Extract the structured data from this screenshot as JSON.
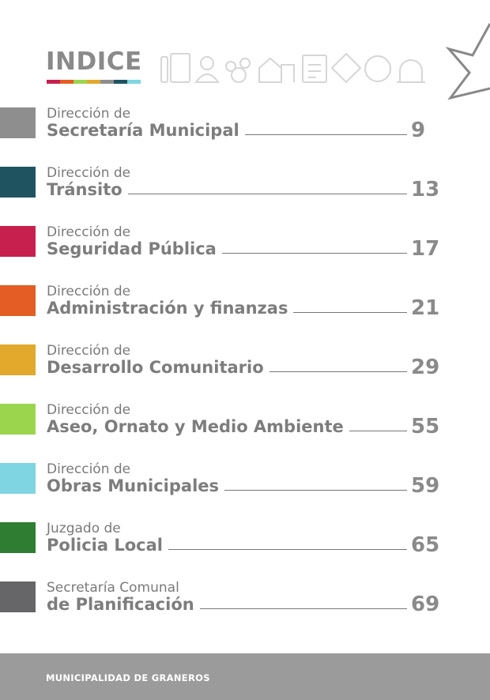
{
  "title": "INDICE",
  "entries": [
    {
      "prefix": "Dirección de",
      "name": "Secretaría Municipal",
      "page": 9,
      "color": "#8e8e8e"
    },
    {
      "prefix": "Dirección de",
      "name": "Tránsito",
      "page": 13,
      "color": "#1f5360"
    },
    {
      "prefix": "Dirección de",
      "name": "Seguridad Pública",
      "page": 17,
      "color": "#c8204e"
    },
    {
      "prefix": "Dirección de",
      "name": "Administración y finanzas",
      "page": 21,
      "color": "#e35d24"
    },
    {
      "prefix": "Dirección de",
      "name": "Desarrollo Comunitario",
      "page": 29,
      "color": "#e2a92c"
    },
    {
      "prefix": "Dirección de",
      "name": "Aseo, Ornato y Medio Ambiente",
      "page": 55,
      "color": "#9bd54e"
    },
    {
      "prefix": "Dirección de",
      "name": "Obras Municipales",
      "page": 59,
      "color": "#7fd5e1"
    },
    {
      "prefix": "Juzgado de",
      "name": "Policia Local",
      "page": 65,
      "color": "#2e7d32"
    },
    {
      "prefix": "Secretaría Comunal",
      "name": "de Planificación",
      "page": 69,
      "color": "#666567"
    }
  ],
  "footer": "MUNICIPALIDAD DE GRANEROS"
}
